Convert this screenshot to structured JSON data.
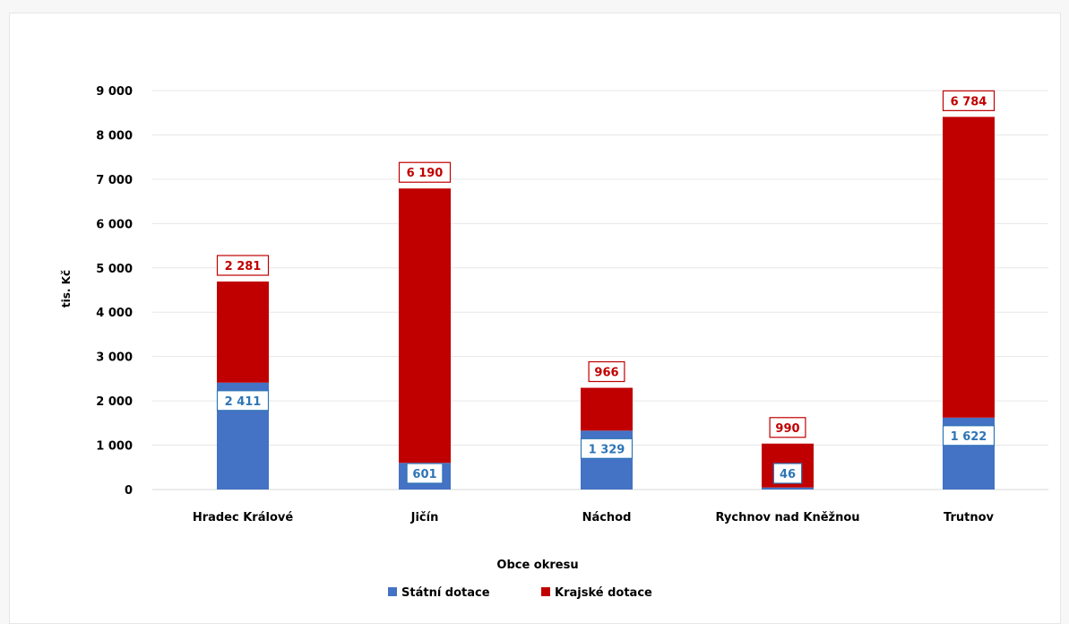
{
  "chart_data": {
    "type": "bar",
    "stacked": true,
    "categories": [
      "Hradec Králové",
      "Jičín",
      "Náchod",
      "Rychnov nad Kněžnou",
      "Trutnov"
    ],
    "series": [
      {
        "name": "Státní dotace",
        "values": [
          2411,
          601,
          1329,
          46,
          1622
        ],
        "color": "#4472c4",
        "label_color": "#2e75b6"
      },
      {
        "name": "Krajské dotace",
        "values": [
          2281,
          6190,
          966,
          990,
          6784
        ],
        "color": "#c00000",
        "label_color": "#c00000"
      }
    ],
    "data_labels": {
      "Státní dotace": [
        "2 411",
        "601",
        "1 329",
        "46",
        "1 622"
      ],
      "Krajské dotace": [
        "2 281",
        "6 190",
        "966",
        "990",
        "6 784"
      ]
    },
    "y_ticks": [
      0,
      1000,
      2000,
      3000,
      4000,
      5000,
      6000,
      7000,
      8000,
      9000
    ],
    "y_tick_labels": [
      "0",
      "1 000",
      "2 000",
      "3 000",
      "4 000",
      "5 000",
      "6 000",
      "7 000",
      "8 000",
      "9 000"
    ],
    "ylim": [
      0,
      9000
    ],
    "xlabel": "Obce okresu",
    "ylabel": "tis. Kč",
    "legend_position": "bottom",
    "grid": true
  }
}
